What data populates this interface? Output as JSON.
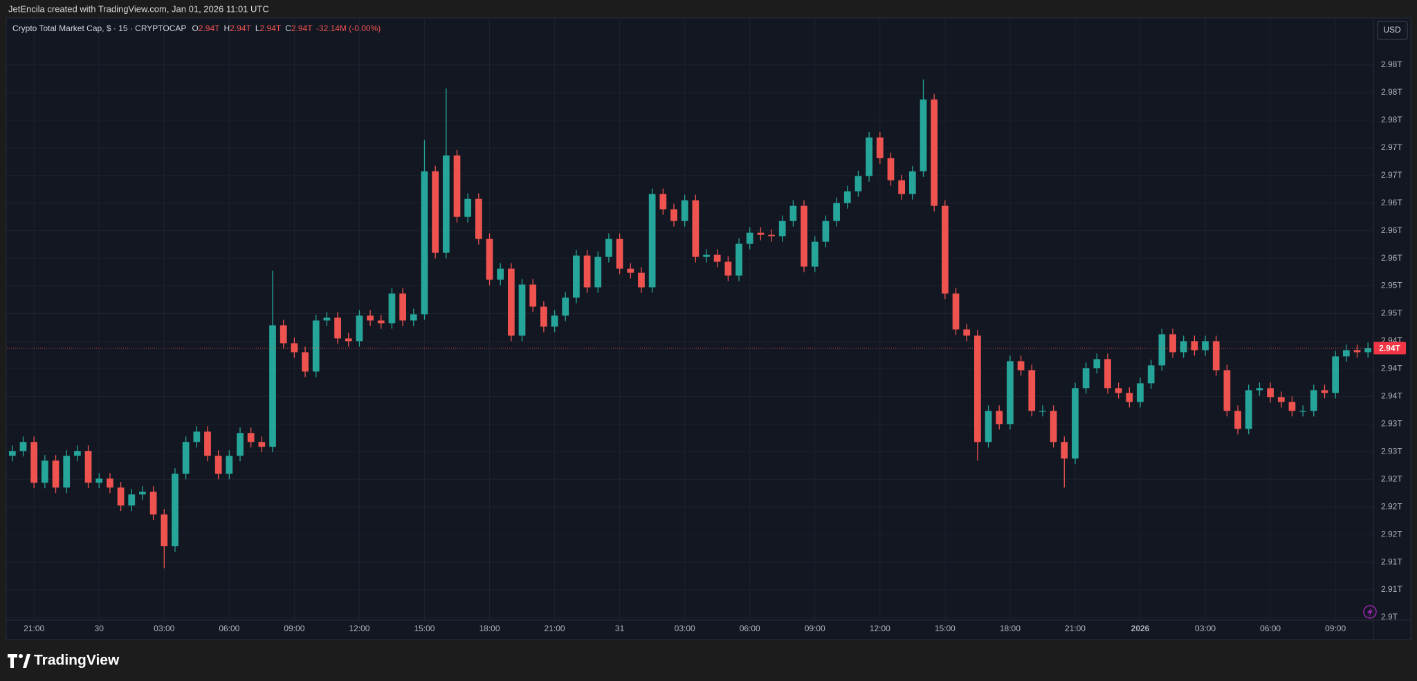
{
  "header": "JetEncila created with TradingView.com, Jan 01, 2026 11:01 UTC",
  "legend": {
    "symbol": "Crypto Total Market Cap, $ · 15 · CRYPTOCAP",
    "items": [
      {
        "key": "O",
        "value": "2.94T"
      },
      {
        "key": "H",
        "value": "2.94T"
      },
      {
        "key": "L",
        "value": "2.94T"
      },
      {
        "key": "C",
        "value": "2.94T"
      }
    ],
    "change": "-32.14M (-0.00%)"
  },
  "currency": "USD",
  "brand": "TradingView",
  "chart_data": {
    "type": "candlestick",
    "up_color": "#26a69a",
    "down_color": "#ef5350",
    "grid": true,
    "ylim": [
      2.9028,
      2.99
    ],
    "yticks": [
      {
        "value": 2.9032,
        "label": "2.9T"
      },
      {
        "value": 2.9072,
        "label": "2.91T"
      },
      {
        "value": 2.9112,
        "label": "2.91T"
      },
      {
        "value": 2.9152,
        "label": "2.92T"
      },
      {
        "value": 2.9192,
        "label": "2.92T"
      },
      {
        "value": 2.9232,
        "label": "2.92T"
      },
      {
        "value": 2.9272,
        "label": "2.93T"
      },
      {
        "value": 2.9312,
        "label": "2.93T"
      },
      {
        "value": 2.9352,
        "label": "2.94T"
      },
      {
        "value": 2.9392,
        "label": "2.94T"
      },
      {
        "value": 2.9432,
        "label": "2.94T"
      },
      {
        "value": 2.9472,
        "label": "2.95T"
      },
      {
        "value": 2.9512,
        "label": "2.95T"
      },
      {
        "value": 2.9552,
        "label": "2.96T"
      },
      {
        "value": 2.9592,
        "label": "2.96T"
      },
      {
        "value": 2.9632,
        "label": "2.96T"
      },
      {
        "value": 2.9672,
        "label": "2.97T"
      },
      {
        "value": 2.9712,
        "label": "2.97T"
      },
      {
        "value": 2.9752,
        "label": "2.98T"
      },
      {
        "value": 2.9792,
        "label": "2.98T"
      },
      {
        "value": 2.9832,
        "label": "2.98T"
      }
    ],
    "last_price": {
      "value": 2.9422,
      "label": "2.94T"
    },
    "categories": [
      null,
      null,
      "21:00",
      null,
      null,
      null,
      null,
      null,
      "30",
      null,
      null,
      null,
      null,
      null,
      "03:00",
      null,
      null,
      null,
      null,
      null,
      "06:00",
      null,
      null,
      null,
      null,
      null,
      "09:00",
      null,
      null,
      null,
      null,
      null,
      "12:00",
      null,
      null,
      null,
      null,
      null,
      "15:00",
      null,
      null,
      null,
      null,
      null,
      "18:00",
      null,
      null,
      null,
      null,
      null,
      "21:00",
      null,
      null,
      null,
      null,
      null,
      "31",
      null,
      null,
      null,
      null,
      null,
      "03:00",
      null,
      null,
      null,
      null,
      null,
      "06:00",
      null,
      null,
      null,
      null,
      null,
      "09:00",
      null,
      null,
      null,
      null,
      null,
      "12:00",
      null,
      null,
      null,
      null,
      null,
      "15:00",
      null,
      null,
      null,
      null,
      null,
      "18:00",
      null,
      null,
      null,
      null,
      null,
      "21:00",
      null,
      null,
      null,
      null,
      null,
      "2026",
      null,
      null,
      null,
      null,
      null,
      "03:00",
      null,
      null,
      null,
      null,
      null,
      "06:00",
      null,
      null,
      null,
      null,
      null,
      "09:00",
      null,
      null,
      null
    ],
    "open": [
      2.9266,
      2.9273,
      2.9286,
      2.9227,
      2.9259,
      2.922,
      2.9266,
      2.9273,
      2.9227,
      2.9233,
      2.922,
      2.9194,
      2.921,
      2.9214,
      2.9181,
      2.9135,
      2.924,
      2.9286,
      2.9301,
      2.9266,
      2.924,
      2.9266,
      2.9299,
      2.9286,
      2.9279,
      2.9455,
      2.9429,
      2.9416,
      2.9388,
      2.9462,
      2.9466,
      2.9436,
      2.9432,
      2.9469,
      2.9462,
      2.9458,
      2.9501,
      2.9462,
      2.9471,
      2.9678,
      2.956,
      2.9701,
      2.9612,
      2.9638,
      2.958,
      2.9521,
      2.9537,
      2.944,
      2.9514,
      2.9482,
      2.9453,
      2.9469,
      2.9495,
      2.9556,
      2.951,
      2.9554,
      2.958,
      2.9537,
      2.9531,
      2.951,
      2.9645,
      2.9623,
      2.9606,
      2.9636,
      2.9554,
      2.9557,
      2.9547,
      2.9527,
      2.9573,
      2.9589,
      2.9586,
      2.9584,
      2.9606,
      2.9628,
      2.954,
      2.9576,
      2.9606,
      2.9632,
      2.9649,
      2.9671,
      2.9727,
      2.9697,
      2.9665,
      2.9645,
      2.9678,
      2.9782,
      2.9628,
      2.9501,
      2.9449,
      2.944,
      2.9286,
      2.9331,
      2.9312,
      2.9403,
      2.939,
      2.9331,
      2.9331,
      2.9286,
      2.9262,
      2.9364,
      2.9393,
      2.9406,
      2.9364,
      2.9357,
      2.9344,
      2.9371,
      2.9397,
      2.9442,
      2.9416,
      2.9432,
      2.9419,
      2.9432,
      2.939,
      2.9331,
      2.9305,
      2.9361,
      2.9364,
      2.9351,
      2.9344,
      2.9331,
      2.9331,
      2.9361,
      2.9357,
      2.941,
      2.9419,
      2.9416
    ],
    "high": [
      2.9281,
      2.9294,
      2.9294,
      2.9267,
      2.9267,
      2.9274,
      2.9281,
      2.9281,
      2.9241,
      2.9241,
      2.9228,
      2.9218,
      2.9222,
      2.9222,
      2.9189,
      2.9248,
      2.9294,
      2.9309,
      2.9309,
      2.9274,
      2.9274,
      2.9307,
      2.9307,
      2.9294,
      2.9534,
      2.9463,
      2.9437,
      2.9424,
      2.947,
      2.9474,
      2.9474,
      2.9444,
      2.9477,
      2.9477,
      2.947,
      2.9509,
      2.9509,
      2.9479,
      2.9723,
      2.9686,
      2.9798,
      2.9709,
      2.9646,
      2.9646,
      2.9588,
      2.9545,
      2.9545,
      2.9522,
      2.9522,
      2.949,
      2.9477,
      2.9503,
      2.9564,
      2.9564,
      2.9562,
      2.9588,
      2.9588,
      2.9545,
      2.9539,
      2.9653,
      2.9653,
      2.9631,
      2.9644,
      2.9644,
      2.9565,
      2.9565,
      2.9555,
      2.9581,
      2.9597,
      2.9597,
      2.9594,
      2.9614,
      2.9636,
      2.9636,
      2.9584,
      2.9614,
      2.964,
      2.9657,
      2.9679,
      2.9735,
      2.9735,
      2.9705,
      2.9673,
      2.9686,
      2.9811,
      2.979,
      2.9636,
      2.9509,
      2.9457,
      2.9448,
      2.9339,
      2.9339,
      2.9411,
      2.9411,
      2.9398,
      2.9339,
      2.9339,
      2.9294,
      2.9372,
      2.9401,
      2.9414,
      2.9414,
      2.9372,
      2.9365,
      2.9379,
      2.9405,
      2.945,
      2.945,
      2.944,
      2.944,
      2.944,
      2.944,
      2.9398,
      2.9339,
      2.9369,
      2.9372,
      2.9372,
      2.9359,
      2.9352,
      2.9339,
      2.9369,
      2.9369,
      2.9418,
      2.9427,
      2.9427,
      2.943
    ],
    "low": [
      2.9258,
      2.9265,
      2.9219,
      2.9219,
      2.9212,
      2.9212,
      2.9258,
      2.9219,
      2.9219,
      2.9212,
      2.9186,
      2.9186,
      2.9202,
      2.9173,
      2.9103,
      2.9127,
      2.9232,
      2.9278,
      2.9258,
      2.9232,
      2.9232,
      2.9258,
      2.9278,
      2.9271,
      2.9271,
      2.9421,
      2.9408,
      2.938,
      2.938,
      2.9454,
      2.9428,
      2.9424,
      2.9424,
      2.9454,
      2.945,
      2.945,
      2.9454,
      2.9454,
      2.9463,
      2.9552,
      2.9552,
      2.9604,
      2.9604,
      2.9572,
      2.9513,
      2.9513,
      2.9432,
      2.9432,
      2.9474,
      2.9445,
      2.9445,
      2.9461,
      2.9487,
      2.9502,
      2.9502,
      2.9546,
      2.9529,
      2.9523,
      2.9502,
      2.9502,
      2.9615,
      2.9598,
      2.9598,
      2.9546,
      2.9546,
      2.9539,
      2.9519,
      2.9519,
      2.9565,
      2.9578,
      2.9576,
      2.9576,
      2.9598,
      2.9532,
      2.9532,
      2.9568,
      2.9598,
      2.9624,
      2.9641,
      2.9663,
      2.9689,
      2.9657,
      2.9637,
      2.9637,
      2.967,
      2.962,
      2.9493,
      2.9441,
      2.9432,
      2.9259,
      2.9278,
      2.9304,
      2.9304,
      2.9382,
      2.9323,
      2.9323,
      2.9278,
      2.922,
      2.9254,
      2.9356,
      2.9385,
      2.9356,
      2.9349,
      2.9336,
      2.9336,
      2.9363,
      2.9389,
      2.9408,
      2.9408,
      2.9411,
      2.9411,
      2.9382,
      2.9323,
      2.9297,
      2.9297,
      2.9353,
      2.9343,
      2.9336,
      2.9323,
      2.9323,
      2.9323,
      2.9349,
      2.9349,
      2.9402,
      2.9408,
      2.9408
    ],
    "close": [
      2.9273,
      2.9286,
      2.9227,
      2.9259,
      2.922,
      2.9266,
      2.9273,
      2.9227,
      2.9233,
      2.922,
      2.9194,
      2.921,
      2.9214,
      2.9181,
      2.9135,
      2.924,
      2.9286,
      2.9301,
      2.9266,
      2.924,
      2.9266,
      2.9299,
      2.9286,
      2.9279,
      2.9455,
      2.9429,
      2.9416,
      2.9388,
      2.9462,
      2.9466,
      2.9436,
      2.9432,
      2.9469,
      2.9462,
      2.9458,
      2.9501,
      2.9462,
      2.9471,
      2.9678,
      2.956,
      2.9701,
      2.9612,
      2.9638,
      2.958,
      2.9521,
      2.9537,
      2.944,
      2.9514,
      2.9482,
      2.9453,
      2.9469,
      2.9495,
      2.9556,
      2.951,
      2.9554,
      2.958,
      2.9537,
      2.9531,
      2.951,
      2.9645,
      2.9623,
      2.9606,
      2.9636,
      2.9554,
      2.9557,
      2.9547,
      2.9527,
      2.9573,
      2.9589,
      2.9586,
      2.9584,
      2.9606,
      2.9628,
      2.954,
      2.9576,
      2.9606,
      2.9632,
      2.9649,
      2.9671,
      2.9727,
      2.9697,
      2.9665,
      2.9645,
      2.9678,
      2.9782,
      2.9628,
      2.9501,
      2.9449,
      2.944,
      2.9286,
      2.9331,
      2.9312,
      2.9403,
      2.939,
      2.9331,
      2.9331,
      2.9286,
      2.9262,
      2.9364,
      2.9393,
      2.9406,
      2.9364,
      2.9357,
      2.9344,
      2.9371,
      2.9397,
      2.9442,
      2.9416,
      2.9432,
      2.9419,
      2.9432,
      2.939,
      2.9331,
      2.9305,
      2.9361,
      2.9364,
      2.9351,
      2.9344,
      2.9331,
      2.9331,
      2.9361,
      2.9357,
      2.941,
      2.9419,
      2.9416,
      2.9422
    ]
  }
}
